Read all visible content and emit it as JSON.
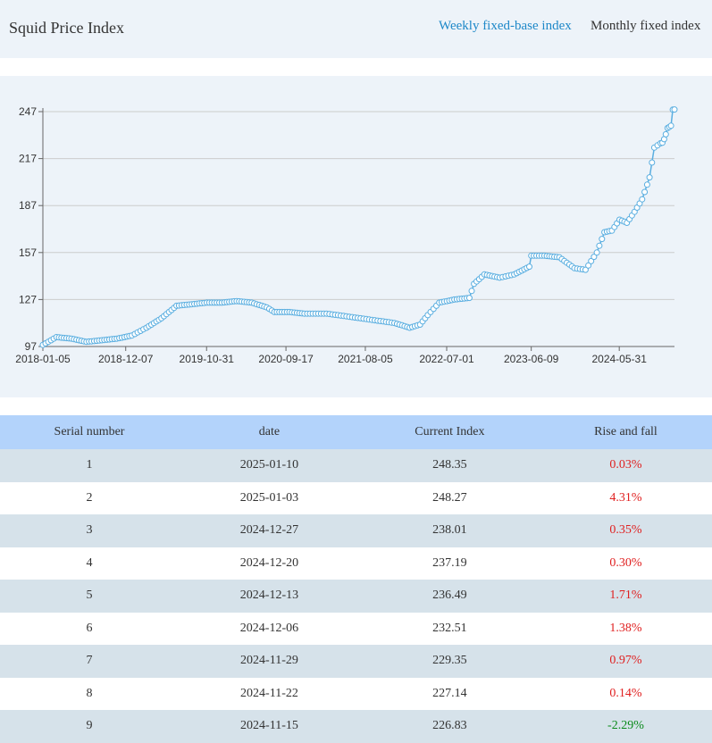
{
  "header": {
    "title": "Squid Price Index",
    "tab_weekly": "Weekly fixed-base index",
    "tab_monthly": "Monthly fixed index"
  },
  "colors": {
    "line": "#5aaee0",
    "positive": "#e02020",
    "negative": "#0a8a1a",
    "active_tab": "#1e88c8"
  },
  "chart_data": {
    "type": "line",
    "x_ticks": [
      "2018-01-05",
      "2018-12-07",
      "2019-10-31",
      "2020-09-17",
      "2021-08-05",
      "2022-07-01",
      "2023-06-09",
      "2024-05-31"
    ],
    "y_ticks": [
      97,
      127,
      157,
      187,
      217,
      247
    ],
    "ylim": [
      97,
      247
    ],
    "xlim": [
      "2018-01-05",
      "2025-01-10"
    ],
    "grid": true,
    "series": [
      {
        "x": [
          "2018-01-05",
          "2018-03-01",
          "2018-05-01",
          "2018-07-01",
          "2018-09-01",
          "2018-11-01",
          "2019-01-01",
          "2019-03-01",
          "2019-05-01",
          "2019-07-01",
          "2019-09-01",
          "2019-11-01",
          "2020-01-01",
          "2020-03-01",
          "2020-05-01",
          "2020-07-01",
          "2020-08-01",
          "2020-10-01",
          "2020-12-01",
          "2021-03-01",
          "2021-06-01",
          "2021-09-01",
          "2021-12-01",
          "2022-02-01",
          "2022-03-15",
          "2022-04-15",
          "2022-06-01",
          "2022-08-01",
          "2022-10-01",
          "2022-10-20",
          "2022-12-01",
          "2023-02-01",
          "2023-04-01",
          "2023-06-01",
          "2023-06-09",
          "2023-08-01",
          "2023-10-01",
          "2023-12-01",
          "2024-01-15",
          "2024-03-01",
          "2024-04-01",
          "2024-05-01",
          "2024-06-01",
          "2024-07-01",
          "2024-08-01",
          "2024-09-01",
          "2024-10-01",
          "2024-10-20",
          "2024-11-15",
          "2024-11-22",
          "2024-11-29",
          "2024-12-06",
          "2024-12-13",
          "2024-12-20",
          "2024-12-27",
          "2025-01-03",
          "2025-01-10"
        ],
        "y": [
          98,
          103,
          102,
          100,
          101,
          102,
          104,
          109,
          115,
          123,
          124,
          125,
          125,
          126,
          125,
          122,
          119,
          119,
          118,
          118,
          116,
          114,
          112,
          109,
          111,
          117,
          125,
          127,
          128,
          137,
          143,
          141,
          143,
          148,
          155,
          155,
          154,
          147,
          146,
          157,
          170,
          171,
          178,
          176,
          183,
          191,
          205,
          224,
          226.83,
          227.14,
          229.35,
          232.51,
          236.49,
          237.19,
          238.01,
          248.27,
          248.35
        ]
      }
    ]
  },
  "table": {
    "headers": [
      "Serial number",
      "date",
      "Current Index",
      "Rise and fall"
    ],
    "rows": [
      {
        "serial": "1",
        "date": "2025-01-10",
        "index": "248.35",
        "change": "0.03%"
      },
      {
        "serial": "2",
        "date": "2025-01-03",
        "index": "248.27",
        "change": "4.31%"
      },
      {
        "serial": "3",
        "date": "2024-12-27",
        "index": "238.01",
        "change": "0.35%"
      },
      {
        "serial": "4",
        "date": "2024-12-20",
        "index": "237.19",
        "change": "0.30%"
      },
      {
        "serial": "5",
        "date": "2024-12-13",
        "index": "236.49",
        "change": "1.71%"
      },
      {
        "serial": "6",
        "date": "2024-12-06",
        "index": "232.51",
        "change": "1.38%"
      },
      {
        "serial": "7",
        "date": "2024-11-29",
        "index": "229.35",
        "change": "0.97%"
      },
      {
        "serial": "8",
        "date": "2024-11-22",
        "index": "227.14",
        "change": "0.14%"
      },
      {
        "serial": "9",
        "date": "2024-11-15",
        "index": "226.83",
        "change": "-2.29%"
      }
    ]
  }
}
